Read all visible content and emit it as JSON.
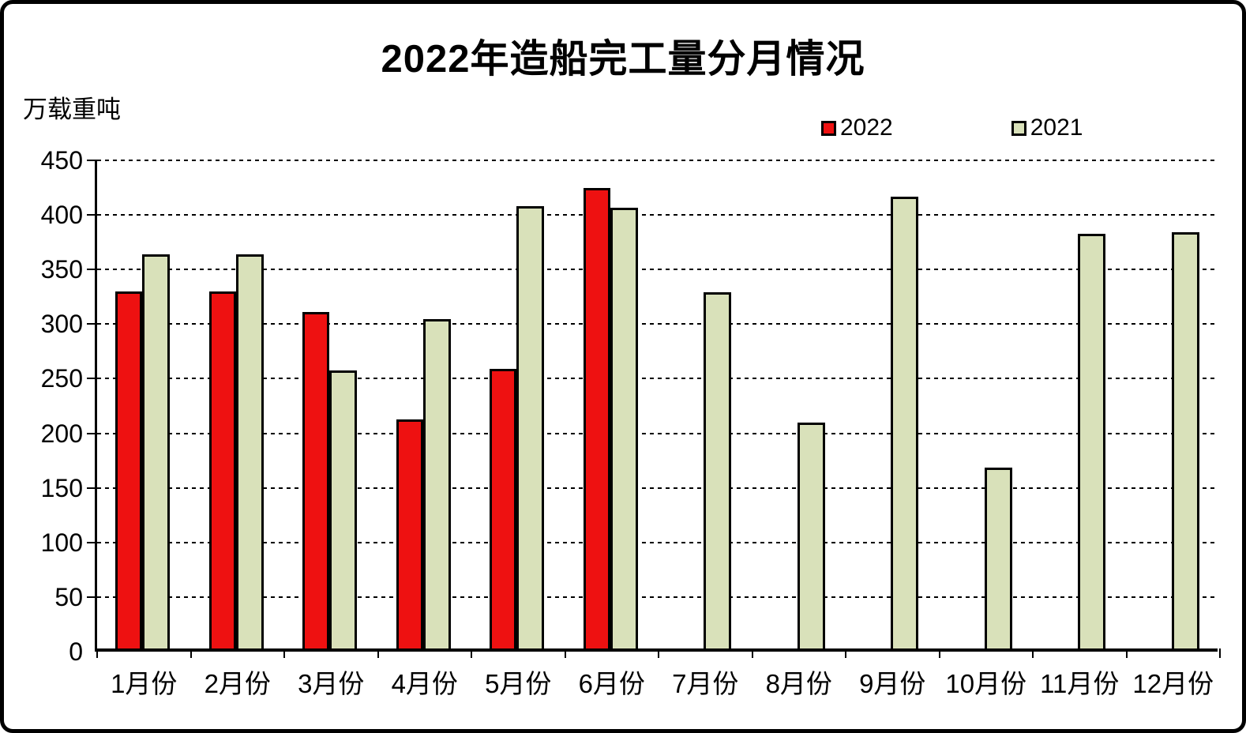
{
  "frame": {
    "background": "#ffffff",
    "border_color": "#000000"
  },
  "chart_data": {
    "type": "bar",
    "title": "2022年造船完工量分月情况",
    "ylabel": "万载重吨",
    "xlabel": "",
    "categories": [
      "1月份",
      "2月份",
      "3月份",
      "4月份",
      "5月份",
      "6月份",
      "7月份",
      "8月份",
      "9月份",
      "10月份",
      "11月份",
      "12月份"
    ],
    "series": [
      {
        "name": "2022",
        "color": "#ee1111",
        "values": [
          327,
          327,
          308,
          210,
          256,
          422,
          null,
          null,
          null,
          null,
          null,
          null
        ]
      },
      {
        "name": "2021",
        "color": "#d9e1ba",
        "values": [
          361,
          361,
          255,
          302,
          405,
          404,
          326,
          207,
          414,
          166,
          380,
          381
        ]
      }
    ],
    "ylim": [
      0,
      450
    ],
    "ytick_step": 50,
    "yticks": [
      0,
      50,
      100,
      150,
      200,
      250,
      300,
      350,
      400,
      450
    ],
    "grid": "horizontal-dashed",
    "legend_position": "top-right",
    "bar_border_color": "#000000"
  }
}
